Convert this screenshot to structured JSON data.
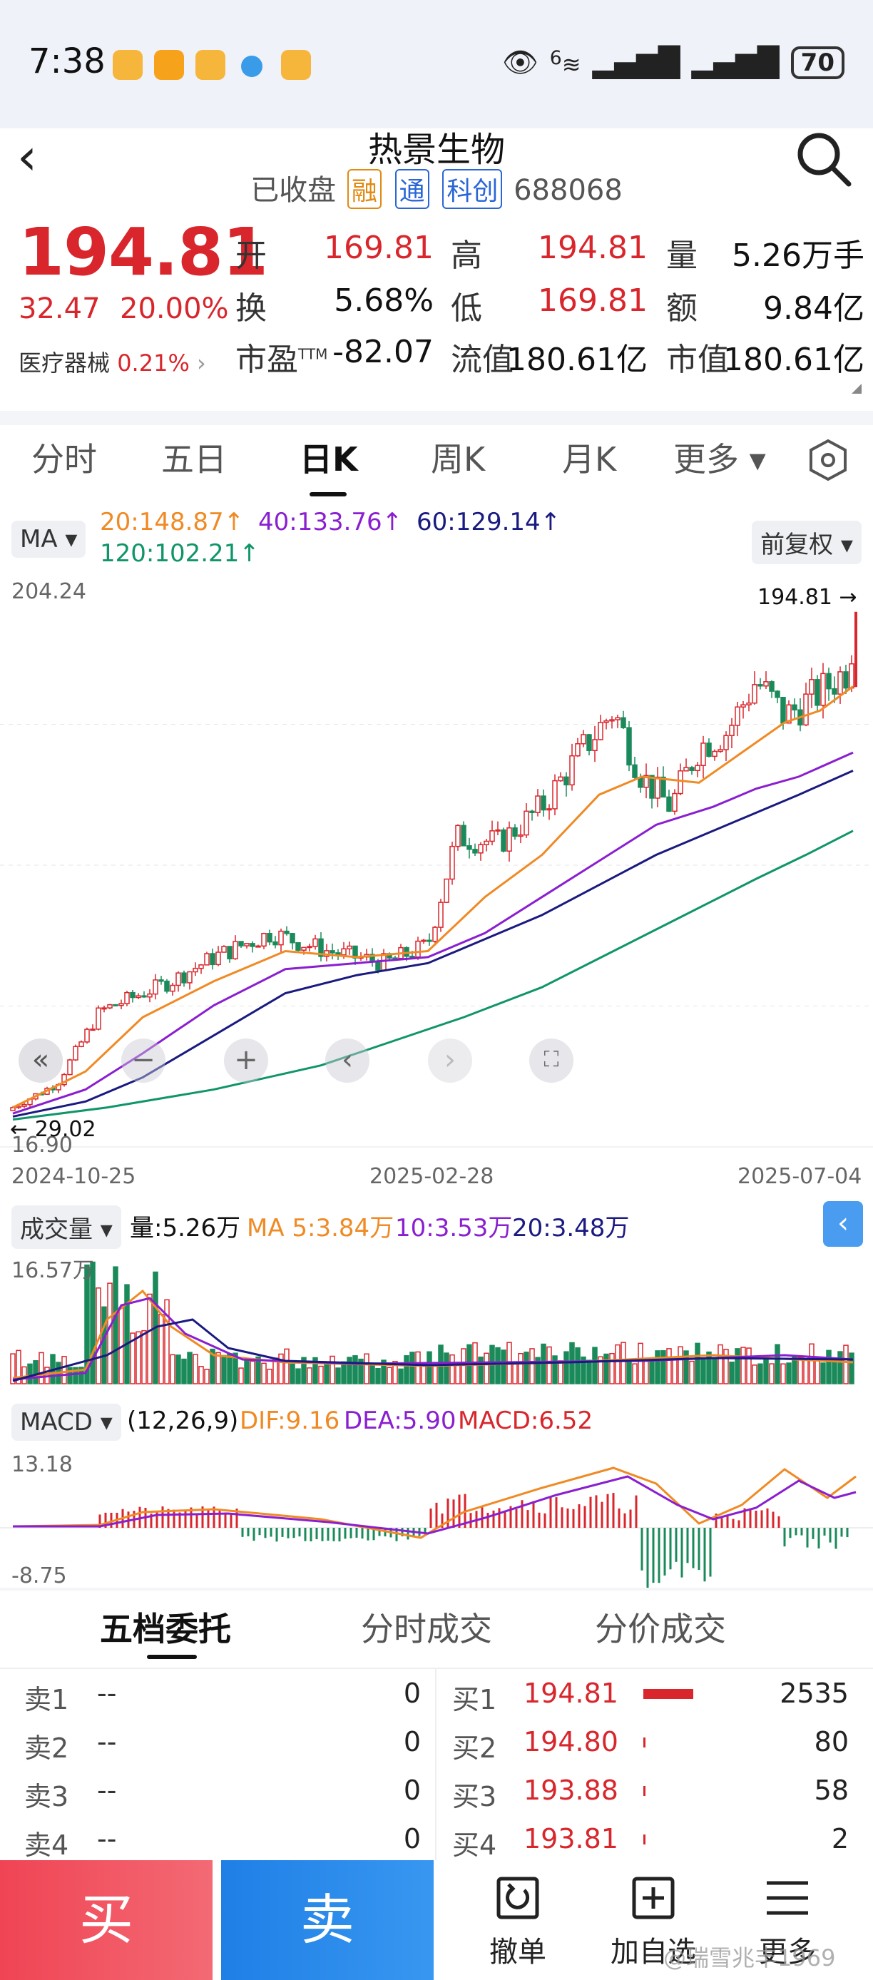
{
  "status_bar": {
    "time": "7:38",
    "network": "6",
    "battery": "70"
  },
  "header": {
    "title": "热景生物",
    "state": "已收盘",
    "tags": [
      "融",
      "通",
      "科创"
    ],
    "code": "688068"
  },
  "quote": {
    "price": "194.81",
    "change": "32.47",
    "change_pct": "20.00%",
    "industry": "医疗器械",
    "industry_pct": "0.21%",
    "fields": [
      {
        "label": "开",
        "value": "169.81",
        "color": "red"
      },
      {
        "label": "高",
        "value": "194.81",
        "color": "red"
      },
      {
        "label": "量",
        "value": "5.26万手",
        "color": "dark"
      },
      {
        "label": "换",
        "value": "5.68%",
        "color": "dark"
      },
      {
        "label": "低",
        "value": "169.81",
        "color": "red"
      },
      {
        "label": "额",
        "value": "9.84亿",
        "color": "dark"
      },
      {
        "label": "市盈TTM",
        "value": "-82.07",
        "color": "dark"
      },
      {
        "label": "流值",
        "value": "180.61亿",
        "color": "dark"
      },
      {
        "label": "市值",
        "value": "180.61亿",
        "color": "dark"
      }
    ]
  },
  "tabs": [
    "分时",
    "五日",
    "日K",
    "周K",
    "月K",
    "更多"
  ],
  "active_tab": "日K",
  "ma_row": {
    "ma_button": "MA",
    "ma20": "20:148.87",
    "ma40": "40:133.76",
    "ma60": "60:129.14",
    "ma120": "120:102.21",
    "adjust_button": "前复权"
  },
  "kline": {
    "y_top": "204.24",
    "y_bottom": "16.90",
    "last_price": "194.81",
    "low_mark": "29.02",
    "dates": [
      "2024-10-25",
      "2025-02-28",
      "2025-07-04"
    ]
  },
  "volume": {
    "button": "成交量",
    "vol": "量:5.26万",
    "ma5": "MA 5:3.84万",
    "ma10": "10:3.53万",
    "ma20": "20:3.48万",
    "y_top": "16.57万"
  },
  "macd": {
    "button": "MACD",
    "params": "(12,26,9)",
    "dif": "DIF:9.16",
    "dea": "DEA:5.90",
    "macd": "MACD:6.52",
    "y_top": "13.18",
    "y_bottom": "-8.75"
  },
  "orderbook": {
    "tabs": [
      "五档委托",
      "分时成交",
      "分价成交"
    ],
    "sell": [
      {
        "label": "卖1",
        "price": "--",
        "vol": "0"
      },
      {
        "label": "卖2",
        "price": "--",
        "vol": "0"
      },
      {
        "label": "卖3",
        "price": "--",
        "vol": "0"
      },
      {
        "label": "卖4",
        "price": "--",
        "vol": "0"
      }
    ],
    "buy": [
      {
        "label": "买1",
        "price": "194.81",
        "vol": "2535"
      },
      {
        "label": "买2",
        "price": "194.80",
        "vol": "80"
      },
      {
        "label": "买3",
        "price": "193.88",
        "vol": "58"
      },
      {
        "label": "买4",
        "price": "193.81",
        "vol": "2"
      }
    ]
  },
  "bottom_bar": {
    "buy": "买",
    "sell": "卖",
    "cancel": "撤单",
    "add_watch": "加自选",
    "more": "更多",
    "watermark": "@瑞雪兆丰1969"
  },
  "colors": {
    "up": "#d8262c",
    "down": "#1a8a5a",
    "ma20": "#f08a24",
    "ma40": "#8a1fd0",
    "ma60": "#1a1a80",
    "ma120": "#10956a"
  }
}
